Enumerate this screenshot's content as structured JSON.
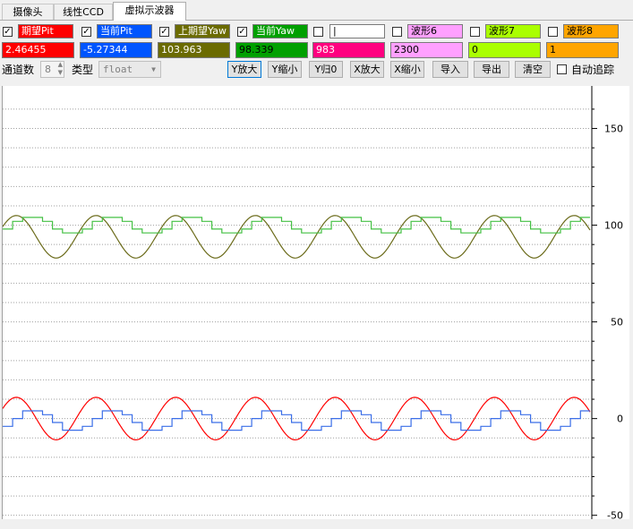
{
  "tabs": [
    "摄像头",
    "线性CCD",
    "虚拟示波器"
  ],
  "active_tab": 2,
  "channels": [
    {
      "checked": true,
      "name": "期望Pit",
      "value": "2.46455",
      "color": "#ff0000",
      "text_color": "#ffffff",
      "value_bg": "#ff0000",
      "value_color": "#ffffff"
    },
    {
      "checked": true,
      "name": "当前Pit",
      "value": "-5.27344",
      "color": "#0055ff",
      "text_color": "#ffffff",
      "value_bg": "#0055ff",
      "value_color": "#ffffff"
    },
    {
      "checked": true,
      "name": "上期望Yaw",
      "value": "103.963",
      "color": "#6b6b00",
      "text_color": "#ffffff",
      "value_bg": "#6b6b00",
      "value_color": "#ffffff"
    },
    {
      "checked": true,
      "name": "当前Yaw",
      "value": "98.339",
      "color": "#00a000",
      "text_color": "#ffffff",
      "value_bg": "#00a000",
      "value_color": "#000000"
    },
    {
      "checked": false,
      "name": "|",
      "value": "983",
      "color": "#ffffff",
      "text_color": "#000000",
      "value_bg": "#ff0080",
      "value_color": "#ffffff"
    },
    {
      "checked": false,
      "name": "波形6",
      "value": "2300",
      "color": "#ffa0ff",
      "text_color": "#000000",
      "value_bg": "#ffa0ff",
      "value_color": "#000000"
    },
    {
      "checked": false,
      "name": "波形7",
      "value": "0",
      "color": "#aaff00",
      "text_color": "#000000",
      "value_bg": "#aaff00",
      "value_color": "#000000"
    },
    {
      "checked": false,
      "name": "波形8",
      "value": "1",
      "color": "#ffa500",
      "text_color": "#000000",
      "value_bg": "#ffa500",
      "value_color": "#000000"
    }
  ],
  "controls": {
    "channel_count_label": "通道数",
    "channel_count": "8",
    "type_label": "类型",
    "type_value": "float",
    "buttons": [
      "Y放大",
      "Y缩小",
      "Y归0",
      "X放大",
      "X缩小",
      "导入",
      "导出",
      "清空"
    ],
    "auto_track_label": "自动追踪"
  },
  "chart_data": {
    "type": "line",
    "ylim": [
      -52,
      172
    ],
    "y_ticks": [
      150,
      100,
      50,
      0,
      -50
    ],
    "series": [
      {
        "name": "期望Pit",
        "color": "#ff0000",
        "kind": "sine",
        "period": 89,
        "phase": -7,
        "mean": 0,
        "amplitude": 11
      },
      {
        "name": "当前Pit",
        "color": "#3a6ee8",
        "kind": "step",
        "period": 89,
        "phase": 8,
        "mean": -1,
        "amplitude": 6
      },
      {
        "name": "上期望Yaw",
        "color": "#6b6b1a",
        "kind": "sine",
        "period": 89,
        "phase": -7,
        "mean": 94,
        "amplitude": 11
      },
      {
        "name": "当前Yaw",
        "color": "#44c044",
        "kind": "step",
        "period": 89,
        "phase": 8,
        "mean": 100,
        "amplitude": 5
      }
    ]
  }
}
